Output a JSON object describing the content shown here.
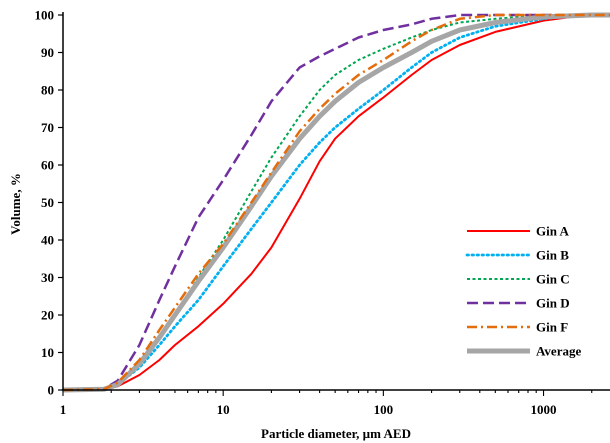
{
  "chart_data": {
    "type": "line",
    "title": "",
    "xlabel": "Particle diameter, µm AED",
    "ylabel": "Volume, %",
    "xscale": "log",
    "xlim": [
      1,
      2600
    ],
    "ylim": [
      0,
      100
    ],
    "xticks": [
      1,
      10,
      100,
      1000
    ],
    "xtick_labels": [
      "1",
      "10",
      "100",
      "1000"
    ],
    "yticks": [
      0,
      10,
      20,
      30,
      40,
      50,
      60,
      70,
      80,
      90,
      100
    ],
    "ytick_labels": [
      "0",
      "10",
      "20",
      "30",
      "40",
      "50",
      "60",
      "70",
      "80",
      "90",
      "100"
    ],
    "grid": false,
    "legend_position": "lower-right",
    "series": [
      {
        "name": "Gin A",
        "color": "#ff0000",
        "style": "solid",
        "points": [
          [
            1,
            0
          ],
          [
            1.8,
            0.2
          ],
          [
            2.2,
            1
          ],
          [
            3,
            4
          ],
          [
            4,
            8
          ],
          [
            5,
            12
          ],
          [
            7,
            17
          ],
          [
            10,
            23
          ],
          [
            15,
            31
          ],
          [
            20,
            38
          ],
          [
            30,
            51
          ],
          [
            40,
            61
          ],
          [
            50,
            67
          ],
          [
            70,
            73
          ],
          [
            100,
            78
          ],
          [
            150,
            84
          ],
          [
            200,
            88
          ],
          [
            300,
            92
          ],
          [
            500,
            95.5
          ],
          [
            1000,
            98.5
          ],
          [
            1500,
            99.5
          ],
          [
            2000,
            100
          ],
          [
            2600,
            100
          ]
        ]
      },
      {
        "name": "Gin B",
        "color": "#00b0f0",
        "style": "dotted",
        "points": [
          [
            1,
            0
          ],
          [
            1.8,
            0.2
          ],
          [
            2.2,
            1.5
          ],
          [
            3,
            6
          ],
          [
            4,
            12
          ],
          [
            5,
            17
          ],
          [
            7,
            24
          ],
          [
            10,
            33
          ],
          [
            15,
            43
          ],
          [
            20,
            50
          ],
          [
            30,
            60
          ],
          [
            40,
            66
          ],
          [
            50,
            70
          ],
          [
            70,
            75
          ],
          [
            100,
            80
          ],
          [
            150,
            86
          ],
          [
            200,
            90
          ],
          [
            300,
            94
          ],
          [
            500,
            97
          ],
          [
            1000,
            99
          ],
          [
            1500,
            99.8
          ],
          [
            2000,
            100
          ],
          [
            2600,
            100
          ]
        ]
      },
      {
        "name": "Gin C",
        "color": "#00a651",
        "style": "dashed",
        "points": [
          [
            1,
            0
          ],
          [
            1.8,
            0.2
          ],
          [
            2.2,
            1.5
          ],
          [
            3,
            7
          ],
          [
            4,
            14
          ],
          [
            5,
            20
          ],
          [
            7,
            30
          ],
          [
            10,
            40
          ],
          [
            15,
            53
          ],
          [
            20,
            62
          ],
          [
            30,
            73
          ],
          [
            40,
            80
          ],
          [
            50,
            84
          ],
          [
            70,
            88
          ],
          [
            100,
            91
          ],
          [
            150,
            94
          ],
          [
            200,
            96
          ],
          [
            300,
            98
          ],
          [
            500,
            99
          ],
          [
            1000,
            100
          ],
          [
            2600,
            100
          ]
        ]
      },
      {
        "name": "Gin D",
        "color": "#7030a0",
        "style": "longdash",
        "points": [
          [
            1,
            0
          ],
          [
            1.8,
            0.3
          ],
          [
            2.2,
            2.5
          ],
          [
            3,
            12
          ],
          [
            4,
            24
          ],
          [
            5,
            33
          ],
          [
            7,
            46
          ],
          [
            10,
            56
          ],
          [
            15,
            68
          ],
          [
            20,
            77
          ],
          [
            30,
            86
          ],
          [
            40,
            89
          ],
          [
            50,
            91
          ],
          [
            70,
            94
          ],
          [
            100,
            96
          ],
          [
            150,
            97.5
          ],
          [
            200,
            99
          ],
          [
            300,
            100
          ],
          [
            2600,
            100
          ]
        ]
      },
      {
        "name": "Gin F",
        "color": "#e46c0a",
        "style": "dashdot",
        "points": [
          [
            1,
            0
          ],
          [
            1.8,
            0.2
          ],
          [
            2.2,
            2
          ],
          [
            3,
            8
          ],
          [
            4,
            16
          ],
          [
            5,
            22
          ],
          [
            7,
            31
          ],
          [
            10,
            39
          ],
          [
            15,
            50
          ],
          [
            20,
            58
          ],
          [
            30,
            69
          ],
          [
            40,
            75
          ],
          [
            50,
            79
          ],
          [
            70,
            84
          ],
          [
            100,
            88
          ],
          [
            150,
            93
          ],
          [
            200,
            96
          ],
          [
            300,
            99
          ],
          [
            500,
            100
          ],
          [
            2600,
            100
          ]
        ]
      },
      {
        "name": "Average",
        "color": "#a6a6a6",
        "style": "thick",
        "points": [
          [
            1,
            0
          ],
          [
            1.8,
            0.2
          ],
          [
            2.2,
            1.5
          ],
          [
            3,
            7
          ],
          [
            4,
            14
          ],
          [
            5,
            20
          ],
          [
            7,
            29
          ],
          [
            10,
            38
          ],
          [
            15,
            49
          ],
          [
            20,
            57
          ],
          [
            30,
            67
          ],
          [
            40,
            73
          ],
          [
            50,
            77
          ],
          [
            70,
            82
          ],
          [
            100,
            86
          ],
          [
            150,
            90
          ],
          [
            200,
            93
          ],
          [
            300,
            96
          ],
          [
            500,
            98
          ],
          [
            1000,
            99.5
          ],
          [
            2000,
            100
          ],
          [
            2600,
            100
          ]
        ]
      }
    ]
  }
}
